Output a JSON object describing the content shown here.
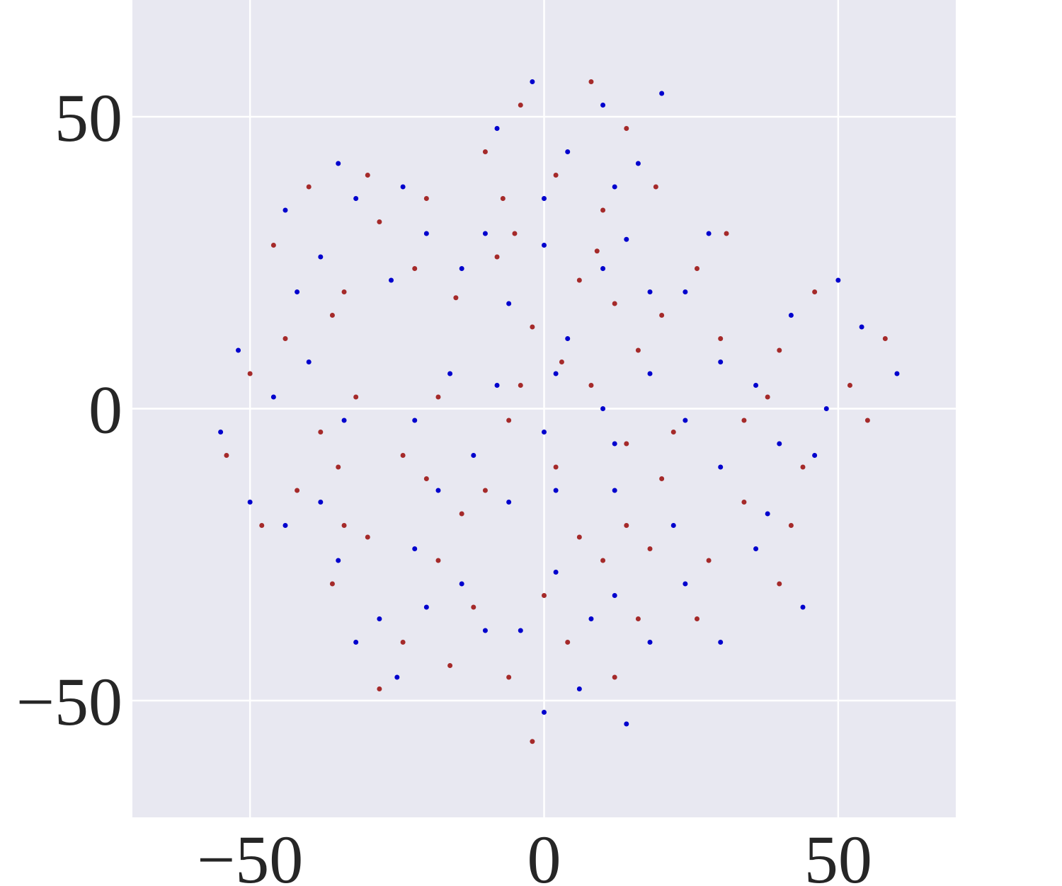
{
  "chart_data": {
    "type": "scatter",
    "xlim": [
      -70,
      70
    ],
    "ylim": [
      -70,
      70
    ],
    "xticks": [
      {
        "value": -50,
        "label": "−50"
      },
      0,
      50
    ],
    "yticks": [
      {
        "value": -50,
        "label": "−50"
      },
      0,
      50
    ],
    "grid": true,
    "series": [
      {
        "color": "#a52a2a",
        "x": [
          -10,
          -4,
          2,
          8,
          14,
          19,
          -7,
          10,
          -46,
          -40,
          -34,
          -28,
          -22,
          -36,
          -30,
          -20,
          -15,
          -8,
          -2,
          6,
          12,
          3,
          -5,
          9,
          8,
          14,
          20,
          26,
          31,
          22,
          16,
          30,
          34,
          40,
          46,
          52,
          58,
          44,
          38,
          55,
          -54,
          -50,
          -44,
          -38,
          -32,
          -48,
          -42,
          -35,
          -24,
          -18,
          -10,
          -4,
          2,
          -14,
          -6,
          -20,
          14,
          20,
          28,
          34,
          40,
          26,
          42,
          18,
          -36,
          -30,
          -24,
          -18,
          -12,
          -28,
          -16,
          -34,
          -6,
          0,
          4,
          10,
          16,
          -2,
          12,
          6
        ],
        "y": [
          44,
          52,
          40,
          56,
          48,
          38,
          36,
          34,
          28,
          38,
          20,
          32,
          24,
          16,
          40,
          36,
          19,
          26,
          14,
          22,
          18,
          8,
          30,
          27,
          4,
          -6,
          16,
          24,
          30,
          -4,
          10,
          12,
          -2,
          10,
          20,
          4,
          12,
          -10,
          2,
          -2,
          -8,
          6,
          12,
          -4,
          2,
          -20,
          -14,
          -10,
          -8,
          2,
          -14,
          4,
          -10,
          -18,
          -2,
          -12,
          -20,
          -12,
          -26,
          -16,
          -30,
          -36,
          -20,
          -24,
          -30,
          -22,
          -40,
          -26,
          -34,
          -48,
          -44,
          -20,
          -46,
          -32,
          -40,
          -26,
          -36,
          -57,
          -46,
          -22
        ]
      },
      {
        "color": "#0000cd",
        "x": [
          -8,
          -2,
          4,
          10,
          16,
          20,
          0,
          12,
          -44,
          -38,
          -32,
          -26,
          -20,
          -42,
          -35,
          -24,
          -14,
          -6,
          0,
          4,
          10,
          -10,
          2,
          14,
          10,
          18,
          24,
          28,
          12,
          24,
          30,
          18,
          36,
          42,
          48,
          54,
          60,
          46,
          40,
          50,
          -55,
          -52,
          -46,
          -40,
          -34,
          -50,
          -44,
          -38,
          -22,
          -16,
          -12,
          -6,
          0,
          2,
          -18,
          -8,
          12,
          22,
          30,
          36,
          44,
          30,
          38,
          24,
          -35,
          -28,
          -22,
          -14,
          -10,
          -25,
          -20,
          -32,
          -4,
          2,
          6,
          12,
          18,
          0,
          8,
          14
        ],
        "y": [
          48,
          56,
          44,
          52,
          42,
          54,
          36,
          38,
          34,
          26,
          36,
          22,
          30,
          20,
          42,
          38,
          24,
          18,
          28,
          12,
          24,
          30,
          6,
          29,
          0,
          6,
          20,
          30,
          -6,
          -2,
          8,
          20,
          4,
          16,
          0,
          14,
          6,
          -8,
          -6,
          22,
          -4,
          10,
          2,
          8,
          -2,
          -16,
          -20,
          -16,
          -2,
          6,
          -8,
          -16,
          -4,
          -14,
          -14,
          4,
          -14,
          -20,
          -10,
          -24,
          -34,
          -40,
          -18,
          -30,
          -26,
          -36,
          -24,
          -30,
          -38,
          -46,
          -34,
          -40,
          -38,
          -28,
          -48,
          -32,
          -40,
          -52,
          -36,
          -54
        ]
      }
    ]
  }
}
